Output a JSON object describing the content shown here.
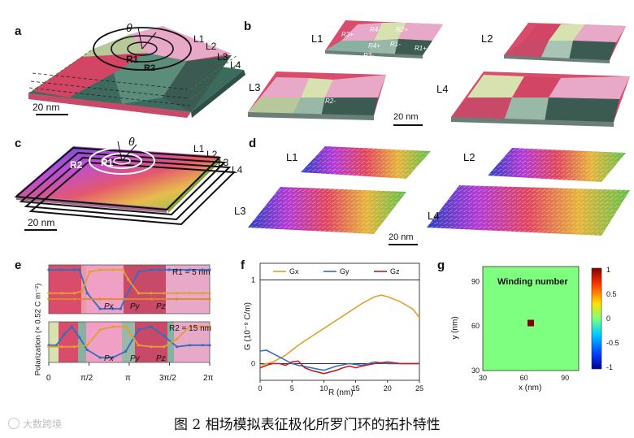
{
  "figure": {
    "panel_labels": [
      "a",
      "b",
      "c",
      "d",
      "e",
      "f",
      "g"
    ],
    "caption": "图 2 相场模拟表征极化所罗门环的拓扑特性",
    "watermark": "大数跨境"
  },
  "panel_a": {
    "theta": "θ",
    "r1": "R1",
    "r2": "R2",
    "layers": [
      "L1",
      "L2",
      "L3",
      "L4"
    ],
    "scale": "20 nm"
  },
  "panel_b": {
    "layers": [
      "L1",
      "L2",
      "L3",
      "L4"
    ],
    "region_tags": [
      "R3+",
      "R4-",
      "R2+",
      "R4+",
      "R1-",
      "R2-",
      "R3-",
      "R1+"
    ],
    "scale": "20 nm"
  },
  "panel_c": {
    "theta": "θ",
    "r1": "R1",
    "r2": "R2",
    "layers": [
      "L1",
      "L2",
      "L3",
      "L4"
    ],
    "scale": "20 nm"
  },
  "panel_d": {
    "layers": [
      "L1",
      "L2",
      "L3",
      "L4"
    ],
    "scale": "20 nm"
  },
  "chart_data": [
    {
      "id": "e-top",
      "type": "line",
      "label": "R1 = 5 nm",
      "ylabel": "Polarization (× 0.52 C m⁻²)",
      "xticks": [
        "0",
        "π/2",
        "π",
        "3π/2",
        "2π"
      ],
      "legend": [
        "Px",
        "Py",
        "Pz"
      ],
      "series": [
        {
          "name": "Px",
          "color": "#2f6fc0",
          "x": [
            0,
            0.5,
            1,
            1.2,
            1.5,
            2,
            2.5,
            2.8,
            3,
            3.5,
            4,
            4.3,
            4.7,
            5,
            5.5,
            6,
            6.28
          ],
          "y": [
            1,
            1,
            1,
            1,
            -0.2,
            -1,
            -1,
            -1,
            -0.4,
            0.9,
            1,
            1,
            1,
            1,
            1,
            1,
            1
          ]
        },
        {
          "name": "Py",
          "color": "#e0a030",
          "x": [
            0,
            0.5,
            1,
            1.3,
            1.6,
            2,
            2.5,
            2.9,
            3.1,
            3.5,
            4,
            4.5,
            5,
            5.5,
            6,
            6.28
          ],
          "y": [
            -0.2,
            -0.2,
            -0.2,
            -0.1,
            0.9,
            1,
            1,
            1,
            0.5,
            -0.2,
            -0.2,
            -0.2,
            -0.2,
            -0.2,
            -0.2,
            -0.2
          ]
        },
        {
          "name": "Pz",
          "color": "#e08a1a",
          "x": [
            0,
            1,
            2,
            3,
            4,
            5,
            6.28
          ],
          "y": [
            -0.5,
            -0.5,
            -0.5,
            -0.5,
            -0.5,
            -0.5,
            -0.5
          ]
        }
      ]
    },
    {
      "id": "e-bottom",
      "type": "line",
      "label": "R2 = 15 nm",
      "xticks": [
        "0",
        "π/2",
        "π",
        "3π/2",
        "2π"
      ],
      "legend": [
        "Px",
        "Py",
        "Pz"
      ],
      "series": [
        {
          "name": "Px",
          "color": "#2f6fc0",
          "x": [
            0,
            0.3,
            0.6,
            0.9,
            1.2,
            1.5,
            2,
            2.5,
            3,
            3.5,
            4,
            4.5,
            5,
            5.5,
            6,
            6.28
          ],
          "y": [
            -0.2,
            -0.2,
            0.5,
            1,
            0.3,
            -0.5,
            -1,
            -1,
            -0.6,
            0.8,
            1,
            0.4,
            -0.3,
            -0.2,
            -0.2,
            -0.2
          ]
        },
        {
          "name": "Py",
          "color": "#e0a030",
          "x": [
            0,
            0.5,
            1,
            1.5,
            2,
            2.5,
            3,
            3.5,
            4,
            4.5,
            5,
            5.5,
            6,
            6.28
          ],
          "y": [
            -0.3,
            -0.3,
            -0.3,
            -0.2,
            0.8,
            1,
            1,
            -0.2,
            -0.3,
            -0.3,
            0.2,
            1,
            1,
            1
          ]
        }
      ]
    },
    {
      "id": "f",
      "type": "line",
      "xlabel": "R (nm)",
      "ylabel": "G (10⁻⁹ C/m)",
      "xticks": [
        0,
        5,
        10,
        15,
        20,
        25
      ],
      "yticks": [
        0,
        1
      ],
      "xlim": [
        0,
        25
      ],
      "ylim": [
        -0.2,
        1.2
      ],
      "legend": [
        "Gx",
        "Gy",
        "Gz"
      ],
      "series": [
        {
          "name": "Gx",
          "color": "#e0a030",
          "x": [
            0,
            2,
            4,
            6,
            8,
            10,
            12,
            14,
            16,
            18,
            19,
            20,
            22,
            24,
            25
          ],
          "y": [
            -0.02,
            0.02,
            0.1,
            0.22,
            0.32,
            0.42,
            0.52,
            0.62,
            0.72,
            0.8,
            0.82,
            0.8,
            0.74,
            0.65,
            0.55
          ]
        },
        {
          "name": "Gy",
          "color": "#2f6fc0",
          "x": [
            0,
            1,
            2,
            3,
            4,
            5,
            6,
            8,
            10,
            12,
            14,
            16,
            18,
            20,
            22,
            25
          ],
          "y": [
            0.15,
            0.16,
            0.12,
            0.08,
            0.04,
            0.0,
            -0.02,
            -0.05,
            -0.08,
            -0.03,
            0.0,
            -0.02,
            0.02,
            0.0,
            0.0,
            0.0
          ]
        },
        {
          "name": "Gz",
          "color": "#c02020",
          "x": [
            0,
            1,
            2,
            3,
            4,
            5,
            6,
            7,
            8,
            9,
            10,
            11,
            12,
            13,
            14,
            15,
            16,
            18,
            20,
            22,
            25
          ],
          "y": [
            -0.05,
            -0.02,
            0.0,
            0.0,
            -0.02,
            0.02,
            0.03,
            -0.05,
            -0.08,
            -0.1,
            -0.12,
            -0.1,
            -0.08,
            -0.05,
            -0.03,
            -0.05,
            -0.03,
            0.0,
            0.02,
            0.0,
            0.0
          ]
        }
      ]
    },
    {
      "id": "g",
      "type": "heatmap",
      "title": "Winding number",
      "xlabel": "x (nm)",
      "ylabel": "y (nm)",
      "xticks": [
        30,
        60,
        90
      ],
      "yticks": [
        30,
        60,
        90
      ],
      "xlim": [
        30,
        100
      ],
      "ylim": [
        30,
        100
      ],
      "colorbar_ticks": [
        "1",
        "0.5",
        "0",
        "-0.5",
        "-1"
      ],
      "background_value": 0,
      "point": {
        "x": 65,
        "y": 62,
        "value": 1
      }
    }
  ]
}
